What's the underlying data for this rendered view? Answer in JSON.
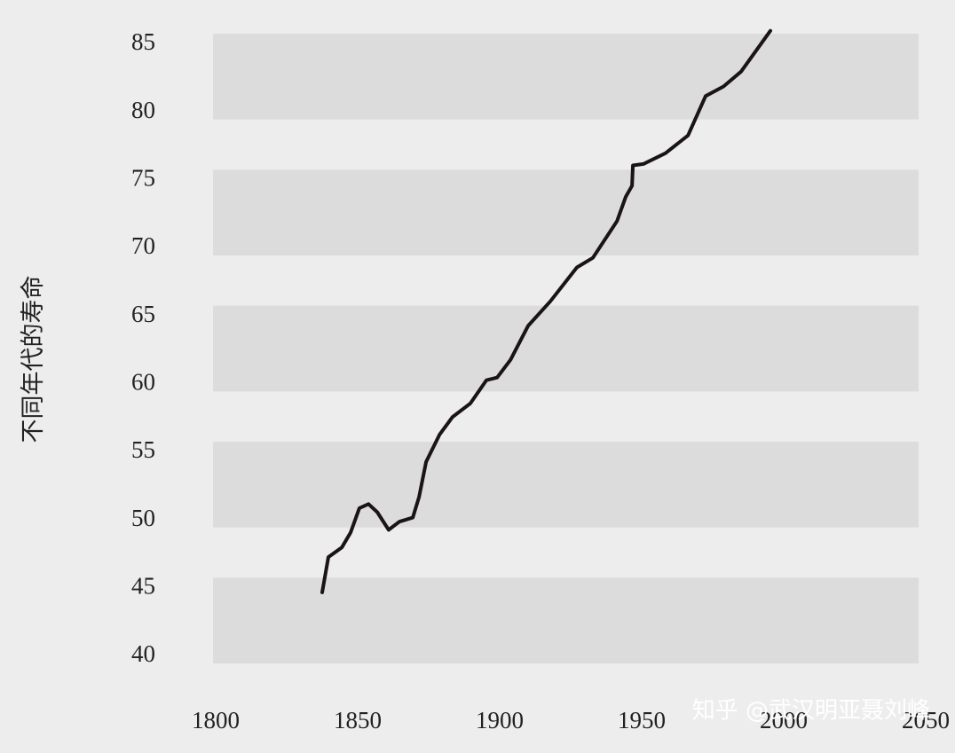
{
  "chart_data": {
    "type": "line",
    "y_label": "不同年代的寿命",
    "x": [
      1837.5,
      1839.7,
      1844.4,
      1847.5,
      1850.6,
      1853.8,
      1856.9,
      1860.9,
      1864.7,
      1869.4,
      1871.6,
      1874.1,
      1878.8,
      1883.4,
      1889.7,
      1895.3,
      1899.1,
      1903.8,
      1910,
      1917.8,
      1927.2,
      1932.8,
      1941.3,
      1944.4,
      1946.6,
      1946.9,
      1950.6,
      1958.4,
      1966.3,
      1972.5,
      1978.8,
      1985,
      1995.3
    ],
    "values": [
      44.7,
      47.3,
      48.0,
      49.1,
      50.9,
      51.2,
      50.6,
      49.3,
      49.9,
      50.2,
      51.7,
      54.3,
      56.3,
      57.6,
      58.6,
      60.3,
      60.5,
      61.8,
      64.3,
      66.1,
      68.6,
      69.3,
      72,
      73.8,
      74.6,
      76.1,
      76.2,
      77,
      78.3,
      81.2,
      81.9,
      83,
      86
    ],
    "color": "#1a1414",
    "xlim": [
      1800,
      2050
    ],
    "xticks": [
      1800,
      1850,
      1900,
      1950,
      2000,
      2050
    ],
    "ylim": [
      40,
      85
    ],
    "yticks": [
      40,
      45,
      50,
      55,
      60,
      65,
      70,
      75,
      80,
      85
    ],
    "bands": true,
    "watermark": "知乎 @武汉明亚聂刘峰"
  }
}
